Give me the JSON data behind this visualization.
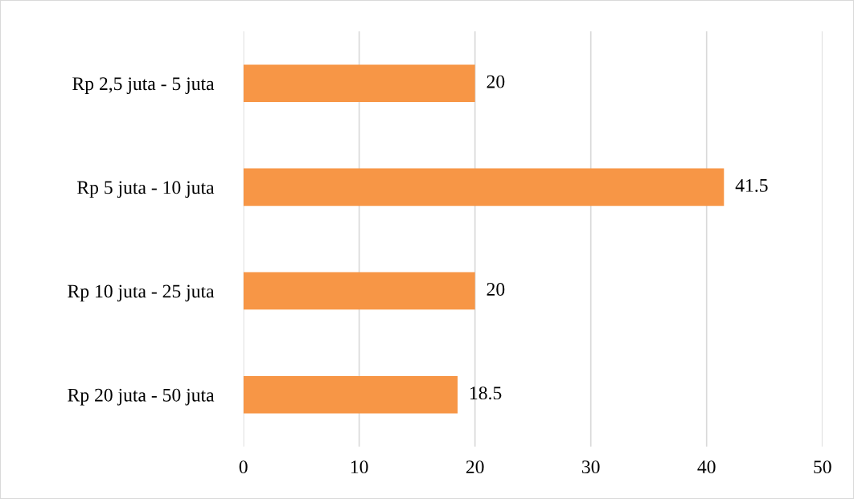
{
  "chart_data": {
    "type": "bar",
    "orientation": "horizontal",
    "categories": [
      "Rp 2,5 juta - 5 juta",
      "Rp 5 juta - 10 juta",
      "Rp 10 juta - 25 juta",
      "Rp 20 juta - 50 juta"
    ],
    "values": [
      20,
      41.5,
      20,
      18.5
    ],
    "color": "#f79646",
    "xlim": [
      0,
      50
    ],
    "xticks": [
      0,
      10,
      20,
      30,
      40,
      50
    ],
    "grid": "x",
    "data_labels": true
  }
}
